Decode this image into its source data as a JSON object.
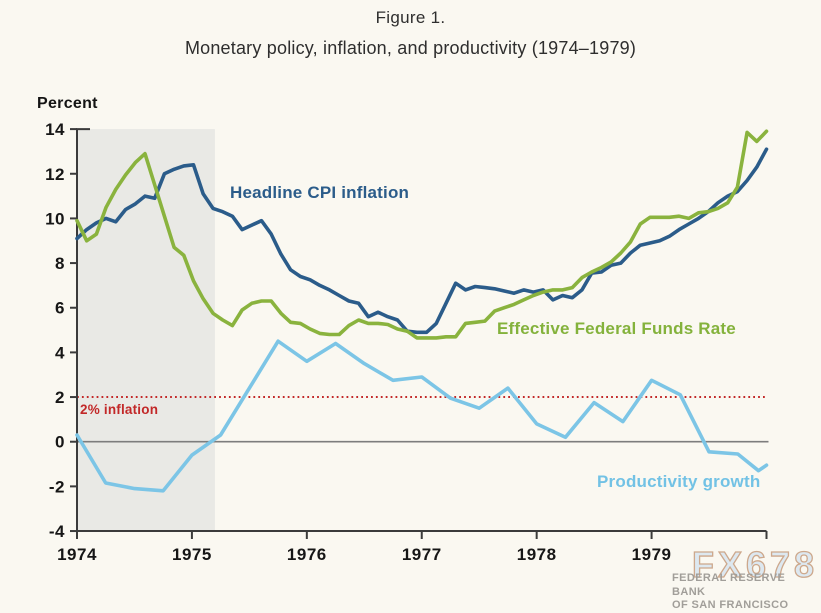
{
  "page": {
    "title": "Figure 1.",
    "subtitle": "Monetary policy, inflation, and productivity (1974–1979)"
  },
  "chart": {
    "y_axis_title": "Percent",
    "annotations": {
      "cpi_label": "Headline CPI inflation",
      "ffr_label": "Effective Federal Funds Rate",
      "productivity_label": "Productivity growth",
      "target_label": "2% inflation"
    },
    "colors": {
      "cpi": "#2b5c8a",
      "ffr": "#8ab33e",
      "productivity": "#7cc5e6",
      "target_line": "#c22828",
      "zero_line": "#7d7d7d",
      "axis": "#3b3b3b",
      "recession_band": "#e9e9e5",
      "tick_text": "#161616",
      "background": "#faf8f1"
    },
    "watermark": {
      "brand": "FX678",
      "source_line1": "FEDERAL RESERVE BANK",
      "source_line2": "OF SAN FRANCISCO"
    }
  },
  "chart_data": {
    "type": "line",
    "title": "Monetary policy, inflation, and productivity (1974–1979)",
    "ylabel": "Percent",
    "ylim": [
      -4,
      14
    ],
    "y_ticks": [
      14,
      12,
      10,
      8,
      6,
      4,
      2,
      0,
      -2,
      -4
    ],
    "x_axis": {
      "start": 1974,
      "end": 1980,
      "labeled_ticks": [
        "1974",
        "1975",
        "1976",
        "1977",
        "1978",
        "1979"
      ]
    },
    "grid": false,
    "recession_band": {
      "start": 1974.0,
      "end": 1975.2
    },
    "target_line": {
      "value": 2,
      "label": "2% inflation"
    },
    "series": [
      {
        "name": "Headline CPI inflation",
        "color": "#2b5c8a",
        "frequency": "monthly",
        "start_year": 1974,
        "values": [
          9.1,
          9.5,
          9.8,
          10.0,
          9.85,
          10.4,
          10.65,
          11.0,
          10.9,
          12.0,
          12.2,
          12.35,
          12.4,
          11.1,
          10.45,
          10.3,
          10.1,
          9.5,
          9.7,
          9.9,
          9.3,
          8.4,
          7.7,
          7.4,
          7.25,
          7.0,
          6.8,
          6.55,
          6.3,
          6.2,
          5.6,
          5.8,
          5.6,
          5.45,
          4.95,
          4.9,
          4.9,
          5.3,
          6.2,
          7.1,
          6.8,
          6.95,
          6.9,
          6.85,
          6.75,
          6.65,
          6.8,
          6.7,
          6.8,
          6.35,
          6.55,
          6.45,
          6.8,
          7.55,
          7.6,
          7.9,
          8.0,
          8.45,
          8.8,
          8.9,
          9.0,
          9.2,
          9.5,
          9.75,
          10.0,
          10.3,
          10.7,
          11.0,
          11.2,
          11.7,
          12.3,
          13.1
        ]
      },
      {
        "name": "Effective Federal Funds Rate",
        "color": "#8ab33e",
        "frequency": "monthly",
        "start_year": 1974,
        "values": [
          9.9,
          9.0,
          9.3,
          10.5,
          11.3,
          11.95,
          12.5,
          12.9,
          11.5,
          10.1,
          8.7,
          8.35,
          7.2,
          6.4,
          5.75,
          5.45,
          5.2,
          5.9,
          6.2,
          6.3,
          6.3,
          5.75,
          5.35,
          5.3,
          5.05,
          4.85,
          4.8,
          4.8,
          5.2,
          5.45,
          5.3,
          5.3,
          5.25,
          5.05,
          4.95,
          4.65,
          4.65,
          4.65,
          4.7,
          4.7,
          5.3,
          5.35,
          5.4,
          5.85,
          6.0,
          6.15,
          6.35,
          6.55,
          6.7,
          6.8,
          6.8,
          6.9,
          7.35,
          7.6,
          7.8,
          8.05,
          8.45,
          8.95,
          9.75,
          10.05,
          10.05,
          10.05,
          10.1,
          10.0,
          10.25,
          10.3,
          10.45,
          10.7,
          11.4,
          13.85,
          13.45,
          13.9
        ]
      },
      {
        "name": "Productivity growth",
        "color": "#7cc5e6",
        "frequency": "quarterly",
        "points": [
          [
            1974.0,
            0.3
          ],
          [
            1974.25,
            -1.85
          ],
          [
            1974.5,
            -2.1
          ],
          [
            1974.75,
            -2.2
          ],
          [
            1975.0,
            -0.6
          ],
          [
            1975.25,
            0.3
          ],
          [
            1975.5,
            2.4
          ],
          [
            1975.75,
            4.5
          ],
          [
            1976.0,
            3.6
          ],
          [
            1976.25,
            4.4
          ],
          [
            1976.5,
            3.5
          ],
          [
            1976.75,
            2.75
          ],
          [
            1977.0,
            2.9
          ],
          [
            1977.25,
            1.95
          ],
          [
            1977.5,
            1.5
          ],
          [
            1977.75,
            2.4
          ],
          [
            1978.0,
            0.8
          ],
          [
            1978.25,
            0.2
          ],
          [
            1978.5,
            1.75
          ],
          [
            1978.75,
            0.9
          ],
          [
            1979.0,
            2.75
          ],
          [
            1979.25,
            2.1
          ],
          [
            1979.5,
            -0.45
          ],
          [
            1979.75,
            -0.55
          ],
          [
            1979.93,
            -1.3
          ],
          [
            1980.0,
            -1.05
          ]
        ]
      }
    ]
  }
}
